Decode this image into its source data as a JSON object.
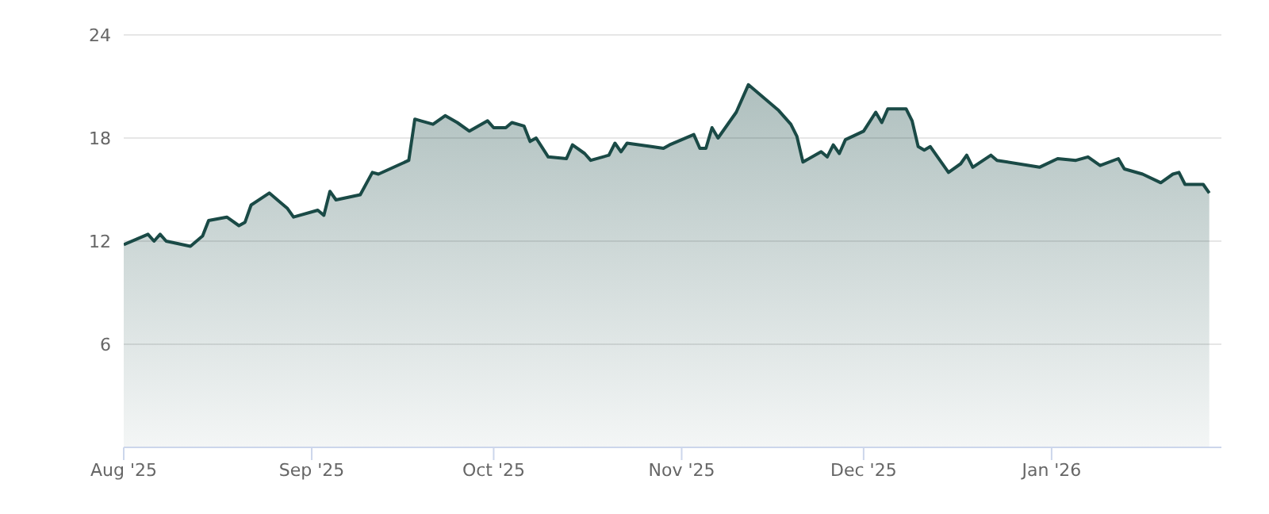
{
  "chart_data": {
    "type": "area",
    "x": [
      "2025-08-01",
      "2025-08-05",
      "2025-08-06",
      "2025-08-07",
      "2025-08-08",
      "2025-08-12",
      "2025-08-14",
      "2025-08-15",
      "2025-08-18",
      "2025-08-20",
      "2025-08-21",
      "2025-08-22",
      "2025-08-25",
      "2025-08-28",
      "2025-08-29",
      "2025-09-02",
      "2025-09-03",
      "2025-09-04",
      "2025-09-05",
      "2025-09-09",
      "2025-09-11",
      "2025-09-12",
      "2025-09-17",
      "2025-09-18",
      "2025-09-19",
      "2025-09-21",
      "2025-09-23",
      "2025-09-25",
      "2025-09-27",
      "2025-09-30",
      "2025-10-01",
      "2025-10-03",
      "2025-10-04",
      "2025-10-06",
      "2025-10-07",
      "2025-10-08",
      "2025-10-10",
      "2025-10-13",
      "2025-10-14",
      "2025-10-16",
      "2025-10-17",
      "2025-10-20",
      "2025-10-21",
      "2025-10-22",
      "2025-10-23",
      "2025-10-27",
      "2025-10-29",
      "2025-10-30",
      "2025-11-03",
      "2025-11-04",
      "2025-11-05",
      "2025-11-06",
      "2025-11-07",
      "2025-11-10",
      "2025-11-12",
      "2025-11-17",
      "2025-11-19",
      "2025-11-20",
      "2025-11-21",
      "2025-11-24",
      "2025-11-25",
      "2025-11-26",
      "2025-11-27",
      "2025-11-28",
      "2025-12-01",
      "2025-12-03",
      "2025-12-04",
      "2025-12-05",
      "2025-12-08",
      "2025-12-09",
      "2025-12-10",
      "2025-12-11",
      "2025-12-12",
      "2025-12-15",
      "2025-12-17",
      "2025-12-18",
      "2025-12-19",
      "2025-12-22",
      "2025-12-23",
      "2025-12-30",
      "2026-01-02",
      "2026-01-05",
      "2026-01-07",
      "2026-01-09",
      "2026-01-12",
      "2026-01-13",
      "2026-01-16",
      "2026-01-19",
      "2026-01-21",
      "2026-01-22",
      "2026-01-23",
      "2026-01-26",
      "2026-01-27"
    ],
    "series": [
      {
        "color": "#1a4a46",
        "values": [
          11.8,
          12.4,
          12.0,
          12.4,
          12.0,
          11.7,
          12.3,
          13.2,
          13.4,
          12.9,
          13.1,
          14.1,
          14.8,
          13.9,
          13.4,
          13.8,
          13.5,
          14.9,
          14.4,
          14.7,
          16.0,
          15.9,
          16.7,
          19.1,
          19.0,
          18.8,
          19.3,
          18.9,
          18.4,
          19.0,
          18.6,
          18.6,
          18.9,
          18.7,
          17.8,
          18.0,
          16.9,
          16.8,
          17.6,
          17.1,
          16.7,
          17.0,
          17.7,
          17.2,
          17.7,
          17.5,
          17.4,
          17.6,
          18.2,
          17.4,
          17.4,
          18.6,
          18.0,
          19.5,
          21.1,
          19.6,
          18.8,
          18.1,
          16.6,
          17.2,
          16.9,
          17.6,
          17.1,
          17.9,
          18.4,
          19.5,
          18.9,
          19.7,
          19.7,
          19.0,
          17.5,
          17.3,
          17.5,
          16.0,
          16.5,
          17.0,
          16.3,
          17.0,
          16.7,
          16.3,
          16.8,
          16.7,
          16.9,
          16.4,
          16.8,
          16.2,
          15.9,
          15.4,
          15.9,
          16.0,
          15.3,
          15.3,
          14.8
        ]
      }
    ],
    "xlim": [
      "2025-08-01",
      "2026-01-29"
    ],
    "xticks": [
      {
        "value": "2025-08-01",
        "label": "Aug '25"
      },
      {
        "value": "2025-09-01",
        "label": "Sep '25"
      },
      {
        "value": "2025-10-01",
        "label": "Oct '25"
      },
      {
        "value": "2025-11-01",
        "label": "Nov '25"
      },
      {
        "value": "2025-12-01",
        "label": "Dec '25"
      },
      {
        "value": "2026-01-01",
        "label": "Jan '26"
      }
    ],
    "ylim": [
      0,
      24
    ],
    "yticks": [
      6,
      12,
      18,
      24
    ],
    "grid": "y",
    "marker": "none"
  }
}
